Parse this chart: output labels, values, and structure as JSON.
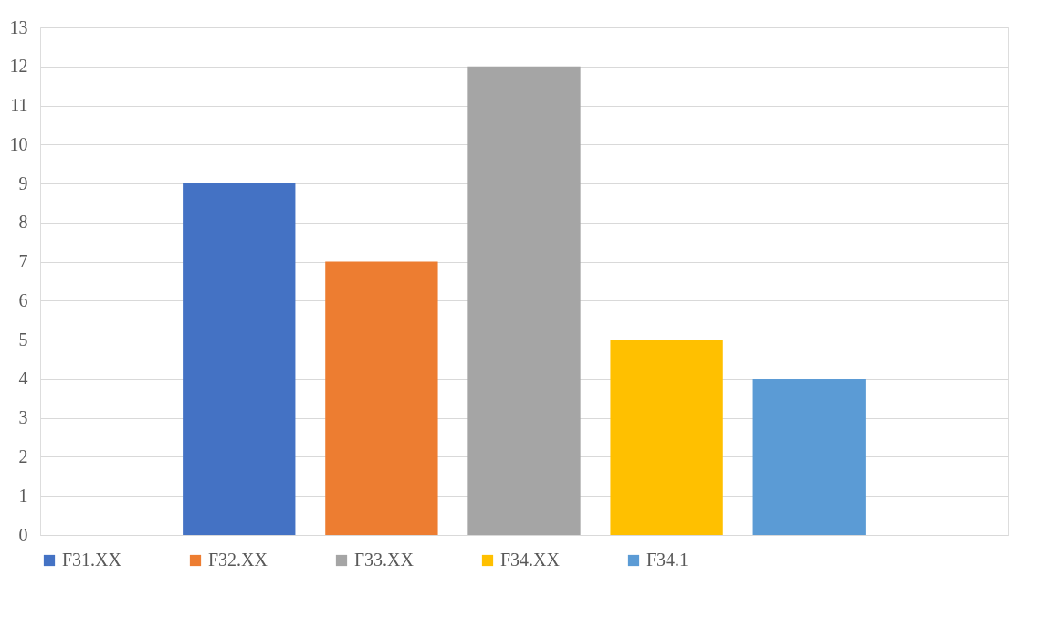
{
  "chart_data": {
    "type": "bar",
    "categories": [
      null
    ],
    "series": [
      {
        "name": "F31.XX",
        "color": "#4472c4",
        "values": [
          9
        ]
      },
      {
        "name": "F32.XX",
        "color": "#ed7d31",
        "values": [
          7
        ]
      },
      {
        "name": "F33.XX",
        "color": "#a5a5a5",
        "values": [
          12
        ]
      },
      {
        "name": "F34.XX",
        "color": "#ffc000",
        "values": [
          5
        ]
      },
      {
        "name": "F34.1",
        "color": "#5b9bd5",
        "values": [
          4
        ]
      }
    ],
    "ylim": [
      0,
      13
    ],
    "yticks": [
      0,
      1,
      2,
      3,
      4,
      5,
      6,
      7,
      8,
      9,
      10,
      11,
      12,
      13
    ],
    "grid": "y",
    "legend": "bottom",
    "tick_labels": "y"
  }
}
